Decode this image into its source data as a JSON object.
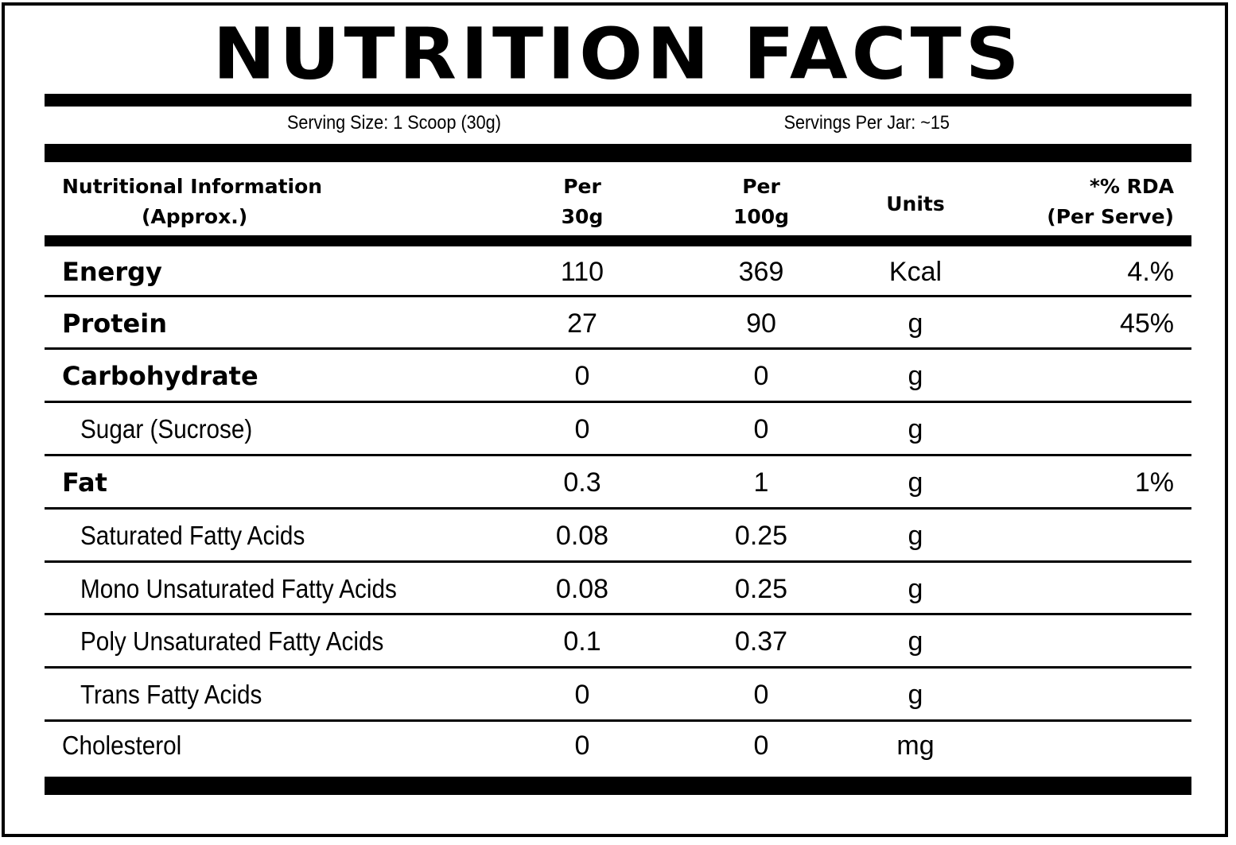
{
  "title": "NUTRITION FACTS",
  "serving": {
    "size": "Serving Size: 1 Scoop (30g)",
    "per_jar": "Servings Per Jar: ~15"
  },
  "columns": {
    "info": [
      "Nutritional Information",
      "(Approx.)"
    ],
    "per30": [
      "Per",
      "30g"
    ],
    "per100": [
      "Per",
      "100g"
    ],
    "units": "Units",
    "rda": [
      "*% RDA",
      "(Per Serve)"
    ]
  },
  "rows": [
    {
      "name": "Energy",
      "per30": "110",
      "per100": "369",
      "unit": "Kcal",
      "rda": "4.%",
      "style": "bold"
    },
    {
      "name": "Protein",
      "per30": "27",
      "per100": "90",
      "unit": "g",
      "rda": "45%",
      "style": "bold"
    },
    {
      "name": "Carbohydrate",
      "per30": "0",
      "per100": "0",
      "unit": "g",
      "rda": "",
      "style": "bold"
    },
    {
      "name": "Sugar (Sucrose)",
      "per30": "0",
      "per100": "0",
      "unit": "g",
      "rda": "",
      "style": "sub"
    },
    {
      "name": "Fat",
      "per30": "0.3",
      "per100": "1",
      "unit": "g",
      "rda": "1%",
      "style": "bold"
    },
    {
      "name": "Saturated Fatty Acids",
      "per30": "0.08",
      "per100": "0.25",
      "unit": "g",
      "rda": "",
      "style": "sub"
    },
    {
      "name": "Mono Unsaturated Fatty Acids",
      "per30": "0.08",
      "per100": "0.25",
      "unit": "g",
      "rda": "",
      "style": "sub"
    },
    {
      "name": "Poly Unsaturated Fatty Acids",
      "per30": "0.1",
      "per100": "0.37",
      "unit": "g",
      "rda": "",
      "style": "sub"
    },
    {
      "name": "Trans Fatty Acids",
      "per30": "0",
      "per100": "0",
      "unit": "g",
      "rda": "",
      "style": "sub"
    },
    {
      "name": "Cholesterol",
      "per30": "0",
      "per100": "0",
      "unit": "mg",
      "rda": "",
      "style": "plain"
    }
  ]
}
